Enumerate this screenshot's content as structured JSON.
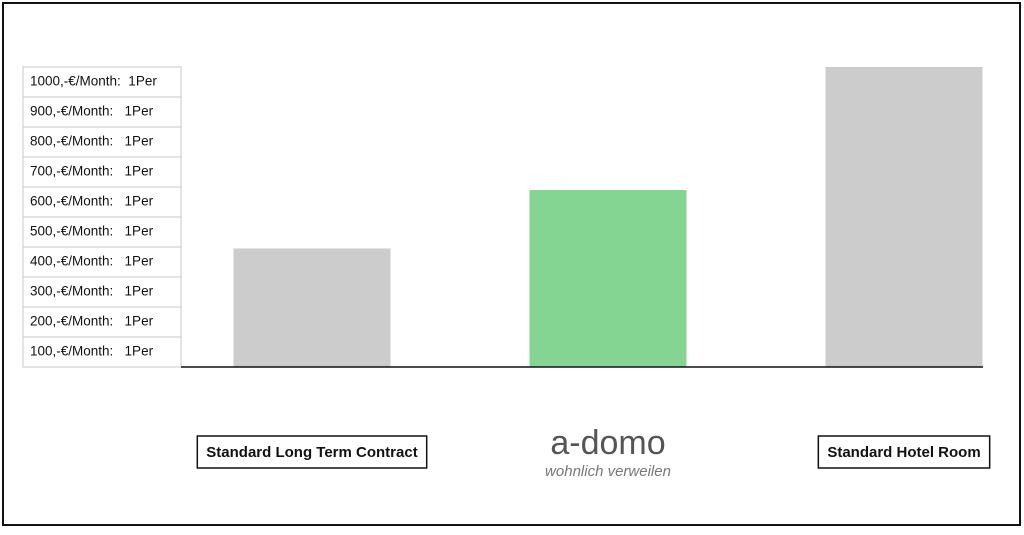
{
  "chart_data": {
    "type": "bar",
    "categories": [
      "Standard Long Term Contract",
      null,
      "Standard Hotel Room"
    ],
    "values": [
      395,
      590,
      1000
    ],
    "colors": [
      "#cccccc",
      "#84d492",
      "#cccccc"
    ],
    "ylim": [
      0,
      1000
    ],
    "yticks": [
      {
        "value": 1000,
        "label": "1000,-€/Month:  1Per"
      },
      {
        "value": 900,
        "label": "900,-€/Month:   1Per"
      },
      {
        "value": 800,
        "label": "800,-€/Month:   1Per"
      },
      {
        "value": 700,
        "label": "700,-€/Month:   1Per"
      },
      {
        "value": 600,
        "label": "600,-€/Month:   1Per"
      },
      {
        "value": 500,
        "label": "500,-€/Month:   1Per"
      },
      {
        "value": 400,
        "label": "400,-€/Month:   1Per"
      },
      {
        "value": 300,
        "label": "300,-€/Month:   1Per"
      },
      {
        "value": 200,
        "label": "200,-€/Month:   1Per"
      },
      {
        "value": 100,
        "label": "100,-€/Month:   1Per"
      }
    ],
    "logo": {
      "name": "a-domo",
      "tagline": "wohnlich verweilen"
    }
  }
}
